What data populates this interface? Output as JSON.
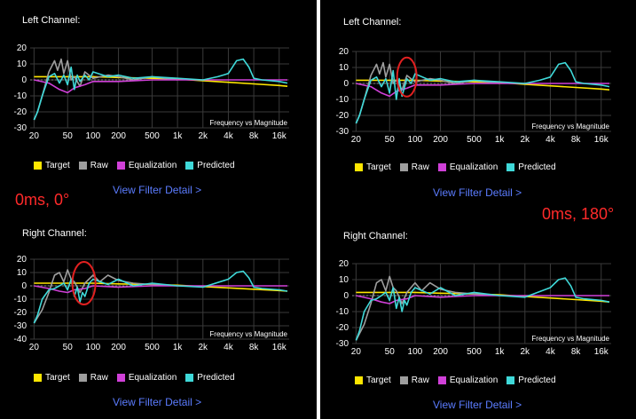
{
  "colors": {
    "target": "#ffe600",
    "raw": "#9e9e9e",
    "equalization": "#d040d8",
    "predicted": "#3fd9d9",
    "link": "#5b7cff",
    "annotation": "#ff2a2a",
    "grid": "#3a3a3a",
    "highlight": "#e02020"
  },
  "legend": {
    "target": "Target",
    "raw": "Raw",
    "equalization": "Equalization",
    "predicted": "Predicted"
  },
  "view_filter_label": "View Filter Detail >",
  "chart_caption": "Frequency vs Magnitude",
  "x_ticks": [
    "20",
    "50",
    "100",
    "200",
    "500",
    "1k",
    "2k",
    "4k",
    "8k",
    "16k"
  ],
  "x_tick_freqs": [
    20,
    50,
    100,
    200,
    500,
    1000,
    2000,
    4000,
    8000,
    16000
  ],
  "panels": [
    {
      "annotation": "0ms, 0°",
      "left_title": "Left Channel:",
      "right_title": "Right Channel:"
    },
    {
      "annotation": "0ms, 180°",
      "left_title": "Left Channel:",
      "right_title": "Right Channel:"
    }
  ],
  "chart_data": [
    {
      "type": "line",
      "title": "Left Channel: (0ms, 0°)",
      "xscale": "log",
      "ylim": [
        -30,
        20
      ],
      "yticks": [
        20,
        10,
        0,
        -10,
        -20,
        -30
      ],
      "series": [
        {
          "name": "Target",
          "x": [
            20,
            50,
            100,
            200,
            500,
            1000,
            2000,
            4000,
            8000,
            16000,
            20000
          ],
          "y": [
            2,
            2,
            2,
            1.5,
            1,
            0.5,
            -0.5,
            -1.5,
            -2.5,
            -3.5,
            -4
          ]
        },
        {
          "name": "Raw",
          "x": [
            20,
            22,
            25,
            30,
            35,
            38,
            42,
            45,
            50,
            55,
            60,
            70,
            80,
            100,
            150,
            200,
            300,
            500,
            1000
          ],
          "y": [
            -25,
            -20,
            -10,
            5,
            12,
            6,
            13,
            4,
            12,
            0,
            2,
            -4,
            5,
            1,
            3,
            2,
            0,
            2,
            0
          ]
        },
        {
          "name": "Equalization",
          "x": [
            20,
            30,
            40,
            50,
            60,
            80,
            100,
            200,
            500,
            1000,
            2000,
            5000,
            10000,
            20000
          ],
          "y": [
            0,
            -2,
            -6,
            -8,
            -5,
            -3,
            -1,
            -1,
            0,
            0,
            0,
            0,
            0,
            0
          ]
        },
        {
          "name": "Predicted",
          "x": [
            20,
            22,
            25,
            30,
            35,
            40,
            45,
            50,
            55,
            60,
            65,
            70,
            80,
            90,
            100,
            150,
            200,
            300,
            500,
            1000,
            2000,
            3000,
            4000,
            5000,
            6000,
            7000,
            8000,
            10000,
            16000,
            20000
          ],
          "y": [
            -25,
            -20,
            -10,
            2,
            4,
            -2,
            3,
            -3,
            8,
            -6,
            3,
            -1,
            3,
            0,
            5,
            2,
            3,
            1,
            2,
            1,
            0,
            2,
            4,
            12,
            13,
            8,
            1,
            0,
            -1,
            -2
          ]
        }
      ]
    },
    {
      "type": "line",
      "title": "Right Channel: (0ms, 0°)",
      "xscale": "log",
      "ylim": [
        -40,
        20
      ],
      "yticks": [
        20,
        10,
        0,
        -10,
        -20,
        -30,
        -40
      ],
      "series": [
        {
          "name": "Target",
          "x": [
            20,
            50,
            100,
            200,
            500,
            1000,
            2000,
            4000,
            8000,
            16000,
            20000
          ],
          "y": [
            2,
            2,
            2,
            1.5,
            1,
            0.5,
            -0.5,
            -1.5,
            -2.5,
            -3.5,
            -4
          ]
        },
        {
          "name": "Raw",
          "x": [
            20,
            25,
            30,
            35,
            40,
            45,
            50,
            55,
            60,
            70,
            80,
            100,
            120,
            150,
            200,
            300,
            500,
            1000
          ],
          "y": [
            -28,
            -18,
            -5,
            8,
            10,
            3,
            12,
            5,
            3,
            -5,
            2,
            8,
            3,
            8,
            4,
            2,
            1,
            0
          ]
        },
        {
          "name": "Equalization",
          "x": [
            20,
            30,
            40,
            50,
            60,
            80,
            100,
            200,
            500,
            1000,
            2000,
            5000,
            10000,
            20000
          ],
          "y": [
            0,
            -2,
            -4,
            -5,
            -3,
            -2,
            0,
            -1,
            0,
            0,
            0,
            0,
            0,
            0
          ]
        },
        {
          "name": "Predicted",
          "x": [
            20,
            22,
            25,
            30,
            35,
            40,
            45,
            50,
            55,
            60,
            65,
            70,
            75,
            80,
            90,
            100,
            150,
            200,
            300,
            500,
            1000,
            2000,
            4000,
            5000,
            6000,
            7000,
            8000,
            10000,
            16000,
            20000
          ],
          "y": [
            -28,
            -22,
            -10,
            -3,
            -2,
            0,
            2,
            -3,
            5,
            -8,
            -1,
            -12,
            -5,
            -8,
            2,
            5,
            1,
            5,
            0,
            2,
            0,
            -1,
            5,
            10,
            11,
            6,
            -1,
            -2,
            -3,
            -4
          ]
        }
      ]
    },
    {
      "type": "line",
      "title": "Left Channel: (0ms, 180°)",
      "xscale": "log",
      "ylim": [
        -30,
        20
      ],
      "yticks": [
        20,
        10,
        0,
        -10,
        -20,
        -30
      ],
      "series": [
        {
          "name": "Target",
          "x": [
            20,
            50,
            100,
            200,
            500,
            1000,
            2000,
            4000,
            8000,
            16000,
            20000
          ],
          "y": [
            2,
            2,
            2,
            1.5,
            1,
            0.5,
            -0.5,
            -1.5,
            -2.5,
            -3.5,
            -4
          ]
        },
        {
          "name": "Raw",
          "x": [
            20,
            22,
            25,
            30,
            35,
            38,
            42,
            45,
            50,
            55,
            60,
            70,
            80,
            100,
            150,
            200,
            300,
            500,
            1000
          ],
          "y": [
            -25,
            -20,
            -10,
            5,
            12,
            6,
            13,
            4,
            12,
            0,
            2,
            -4,
            5,
            1,
            3,
            2,
            0,
            2,
            0
          ]
        },
        {
          "name": "Equalization",
          "x": [
            20,
            30,
            40,
            50,
            60,
            80,
            100,
            200,
            500,
            1000,
            2000,
            5000,
            10000,
            20000
          ],
          "y": [
            0,
            -2,
            -6,
            -8,
            -5,
            -3,
            -1,
            -1,
            0,
            0,
            0,
            0,
            0,
            0
          ]
        },
        {
          "name": "Predicted",
          "x": [
            20,
            22,
            25,
            30,
            35,
            40,
            45,
            50,
            55,
            60,
            65,
            70,
            80,
            90,
            100,
            150,
            200,
            300,
            500,
            1000,
            2000,
            3000,
            4000,
            5000,
            6000,
            7000,
            8000,
            10000,
            16000,
            20000
          ],
          "y": [
            -25,
            -20,
            -10,
            2,
            4,
            -2,
            3,
            -6,
            8,
            -10,
            3,
            -8,
            3,
            0,
            6,
            2,
            3,
            1,
            2,
            1,
            0,
            2,
            4,
            12,
            13,
            8,
            1,
            0,
            -1,
            -2
          ]
        }
      ]
    },
    {
      "type": "line",
      "title": "Right Channel: (0ms, 180°)",
      "xscale": "log",
      "ylim": [
        -30,
        20
      ],
      "yticks": [
        20,
        10,
        0,
        -10,
        -20,
        -30
      ],
      "series": [
        {
          "name": "Target",
          "x": [
            20,
            50,
            100,
            200,
            500,
            1000,
            2000,
            4000,
            8000,
            16000,
            20000
          ],
          "y": [
            2,
            2,
            2,
            1.5,
            1,
            0.5,
            -0.5,
            -1.5,
            -2.5,
            -3.5,
            -4
          ]
        },
        {
          "name": "Raw",
          "x": [
            20,
            25,
            30,
            35,
            40,
            45,
            50,
            55,
            60,
            70,
            80,
            100,
            120,
            150,
            200,
            300,
            500,
            1000
          ],
          "y": [
            -28,
            -18,
            -5,
            8,
            10,
            3,
            12,
            5,
            3,
            -5,
            2,
            8,
            3,
            8,
            4,
            2,
            1,
            0
          ]
        },
        {
          "name": "Equalization",
          "x": [
            20,
            30,
            40,
            50,
            60,
            80,
            100,
            200,
            500,
            1000,
            2000,
            5000,
            10000,
            20000
          ],
          "y": [
            0,
            -2,
            -4,
            -5,
            -3,
            -2,
            0,
            -1,
            0,
            0,
            0,
            0,
            0,
            0
          ]
        },
        {
          "name": "Predicted",
          "x": [
            20,
            22,
            25,
            30,
            35,
            40,
            45,
            50,
            55,
            60,
            65,
            70,
            75,
            80,
            90,
            100,
            150,
            200,
            300,
            500,
            1000,
            2000,
            4000,
            5000,
            6000,
            7000,
            8000,
            10000,
            16000,
            20000
          ],
          "y": [
            -28,
            -22,
            -10,
            -3,
            -2,
            0,
            2,
            -3,
            5,
            -8,
            -1,
            -10,
            -3,
            -6,
            2,
            5,
            1,
            5,
            0,
            2,
            0,
            -1,
            5,
            10,
            11,
            6,
            -1,
            -2,
            -3,
            -4
          ]
        }
      ]
    }
  ]
}
